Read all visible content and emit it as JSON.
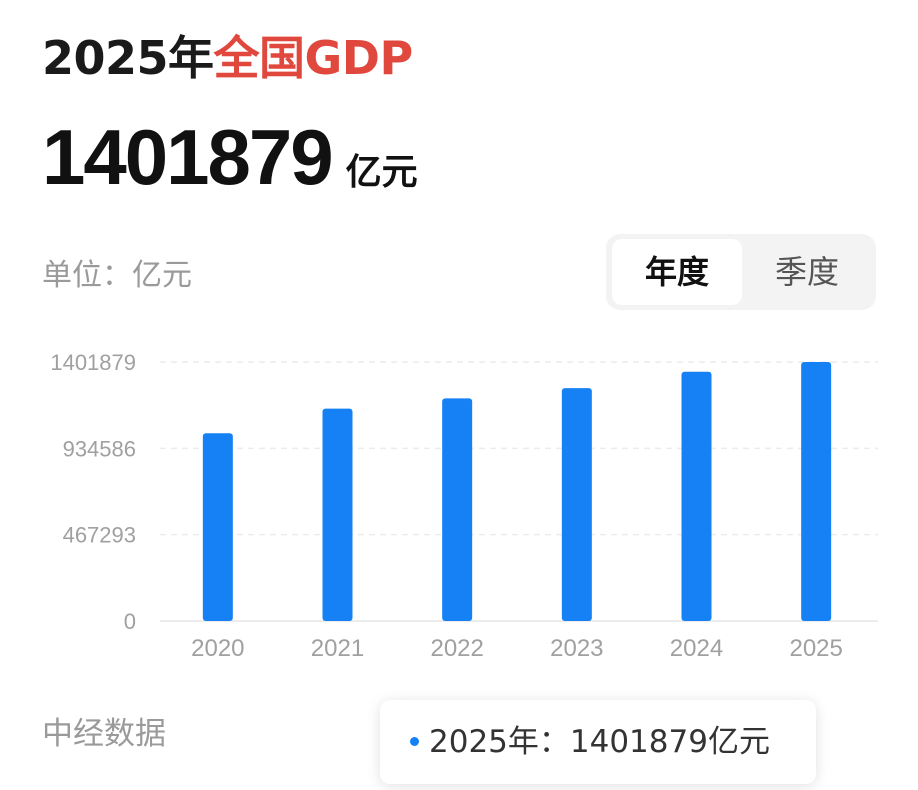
{
  "header": {
    "title_prefix": "2025年",
    "title_accent": "全国GDP",
    "value": "1401879",
    "value_unit": "亿元"
  },
  "unit_label": "单位：亿元",
  "toggle": {
    "options": [
      "年度",
      "季度"
    ],
    "selected": "年度"
  },
  "source": "中经数据",
  "tooltip": {
    "text": "2025年：1401879亿元"
  },
  "colors": {
    "bar": "#1581f5",
    "accent": "#e0483e"
  },
  "chart_data": {
    "type": "bar",
    "categories": [
      "2020",
      "2021",
      "2022",
      "2023",
      "2024",
      "2025"
    ],
    "values": [
      1015986,
      1149237,
      1204724,
      1260582,
      1349084,
      1401879
    ],
    "ylim": [
      0,
      1401879
    ],
    "yticks": [
      0,
      467293,
      934586,
      1401879
    ],
    "grid": true,
    "highlighted": "2025"
  }
}
